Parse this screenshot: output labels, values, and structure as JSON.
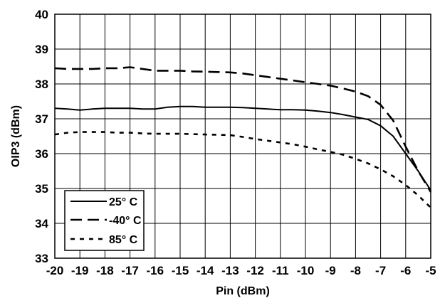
{
  "chart_data": {
    "type": "line",
    "title": "",
    "xlabel": "Pin (dBm)",
    "ylabel": "OIP3 (dBm)",
    "xlim": [
      -20,
      -5
    ],
    "ylim": [
      33,
      40
    ],
    "xticks": [
      -20,
      -19,
      -18,
      -17,
      -16,
      -15,
      -14,
      -13,
      -12,
      -11,
      -10,
      -9,
      -8,
      -7,
      -6,
      -5
    ],
    "yticks": [
      33,
      34,
      35,
      36,
      37,
      38,
      39,
      40
    ],
    "grid": true,
    "legend_position": "bottom-left",
    "series": [
      {
        "name": "25° C",
        "style": "solid",
        "color": "#000000",
        "x": [
          -20,
          -19.5,
          -19,
          -18.5,
          -18,
          -17.5,
          -17,
          -16.5,
          -16,
          -15.5,
          -15,
          -14.5,
          -14,
          -13.5,
          -13,
          -12.5,
          -12,
          -11.5,
          -11,
          -10.5,
          -10,
          -9.5,
          -9,
          -8.5,
          -8,
          -7.5,
          -7,
          -6.5,
          -6,
          -5.5,
          -5
        ],
        "y": [
          37.3,
          37.28,
          37.25,
          37.28,
          37.3,
          37.3,
          37.3,
          37.28,
          37.28,
          37.33,
          37.35,
          37.35,
          37.33,
          37.33,
          37.33,
          37.32,
          37.3,
          37.28,
          37.26,
          37.26,
          37.25,
          37.22,
          37.18,
          37.12,
          37.05,
          36.98,
          36.8,
          36.5,
          36.0,
          35.5,
          34.95
        ]
      },
      {
        "name": "-40° C",
        "style": "long-dash",
        "color": "#000000",
        "x": [
          -20,
          -19.5,
          -19,
          -18.5,
          -18,
          -17.5,
          -17,
          -16.5,
          -16,
          -15.5,
          -15,
          -14.5,
          -14,
          -13.5,
          -13,
          -12.5,
          -12,
          -11.5,
          -11,
          -10.5,
          -10,
          -9.5,
          -9,
          -8.5,
          -8,
          -7.5,
          -7,
          -6.5,
          -6,
          -5.5,
          -5
        ],
        "y": [
          38.45,
          38.43,
          38.43,
          38.43,
          38.45,
          38.45,
          38.48,
          38.43,
          38.38,
          38.38,
          38.38,
          38.36,
          38.35,
          38.34,
          38.33,
          38.3,
          38.25,
          38.2,
          38.15,
          38.1,
          38.05,
          38.0,
          37.95,
          37.87,
          37.78,
          37.65,
          37.4,
          36.95,
          36.2,
          35.5,
          34.9
        ]
      },
      {
        "name": "85° C",
        "style": "short-dash",
        "color": "#000000",
        "x": [
          -20,
          -19.5,
          -19,
          -18.5,
          -18,
          -17.5,
          -17,
          -16.5,
          -16,
          -15.5,
          -15,
          -14.5,
          -14,
          -13.5,
          -13,
          -12.5,
          -12,
          -11.5,
          -11,
          -10.5,
          -10,
          -9.5,
          -9,
          -8.5,
          -8,
          -7.5,
          -7,
          -6.5,
          -6,
          -5.5,
          -5
        ],
        "y": [
          36.55,
          36.6,
          36.62,
          36.62,
          36.62,
          36.6,
          36.6,
          36.58,
          36.57,
          36.57,
          36.57,
          36.56,
          36.55,
          36.54,
          36.53,
          36.48,
          36.42,
          36.37,
          36.32,
          36.27,
          36.2,
          36.12,
          36.05,
          35.97,
          35.85,
          35.72,
          35.55,
          35.35,
          35.1,
          34.8,
          34.45
        ]
      }
    ]
  }
}
